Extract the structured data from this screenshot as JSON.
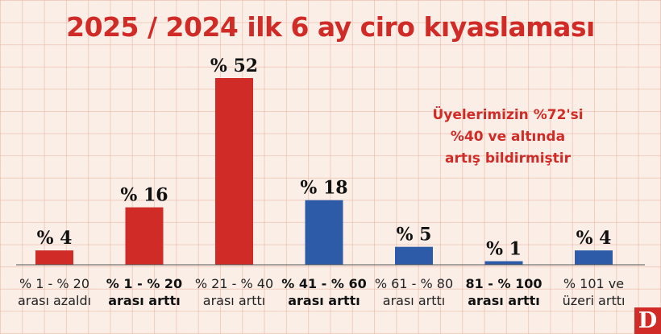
{
  "chart_data": {
    "type": "bar",
    "title": "2025 / 2024 ilk 6 ay ciro kıyaslaması",
    "categories": [
      "% 1 - % 20 arası azaldı",
      "% 1 - % 20 arası arttı",
      "% 21 - % 40 arası arttı",
      "% 41 - % 60 arası arttı",
      "% 61 - % 80 arası arttı",
      "81 - % 100 arası arttı",
      "% 101 ve üzeri arttı"
    ],
    "category_lines": [
      [
        "% 1 - % 20",
        "arası azaldı"
      ],
      [
        "% 1 - % 20",
        "arası arttı"
      ],
      [
        "% 21 - % 40",
        "arası arttı"
      ],
      [
        "% 41 - % 60",
        "arası arttı"
      ],
      [
        "% 61 - % 80",
        "arası arttı"
      ],
      [
        "81 - % 100",
        "arası arttı"
      ],
      [
        "% 101 ve",
        "üzeri arttı"
      ]
    ],
    "category_bold": [
      false,
      true,
      false,
      true,
      false,
      true,
      false
    ],
    "values": [
      4,
      16,
      52,
      18,
      5,
      1,
      4
    ],
    "value_labels": [
      "% 4",
      "% 16",
      "% 52",
      "% 18",
      "% 5",
      "% 1",
      "% 4"
    ],
    "bar_colors": [
      "#d02b27",
      "#d02b27",
      "#d02b27",
      "#2e5ba8",
      "#2e5ba8",
      "#2e5ba8",
      "#2e5ba8"
    ],
    "ylim": [
      0,
      52
    ],
    "grid": true,
    "annotation": [
      "Üyelerimizin %72'si",
      "%40 ve altında",
      "artış bildirmiştir"
    ]
  },
  "logo_text": "D",
  "colors": {
    "background": "#fbeee6",
    "red": "#d02b27",
    "blue": "#2e5ba8"
  }
}
